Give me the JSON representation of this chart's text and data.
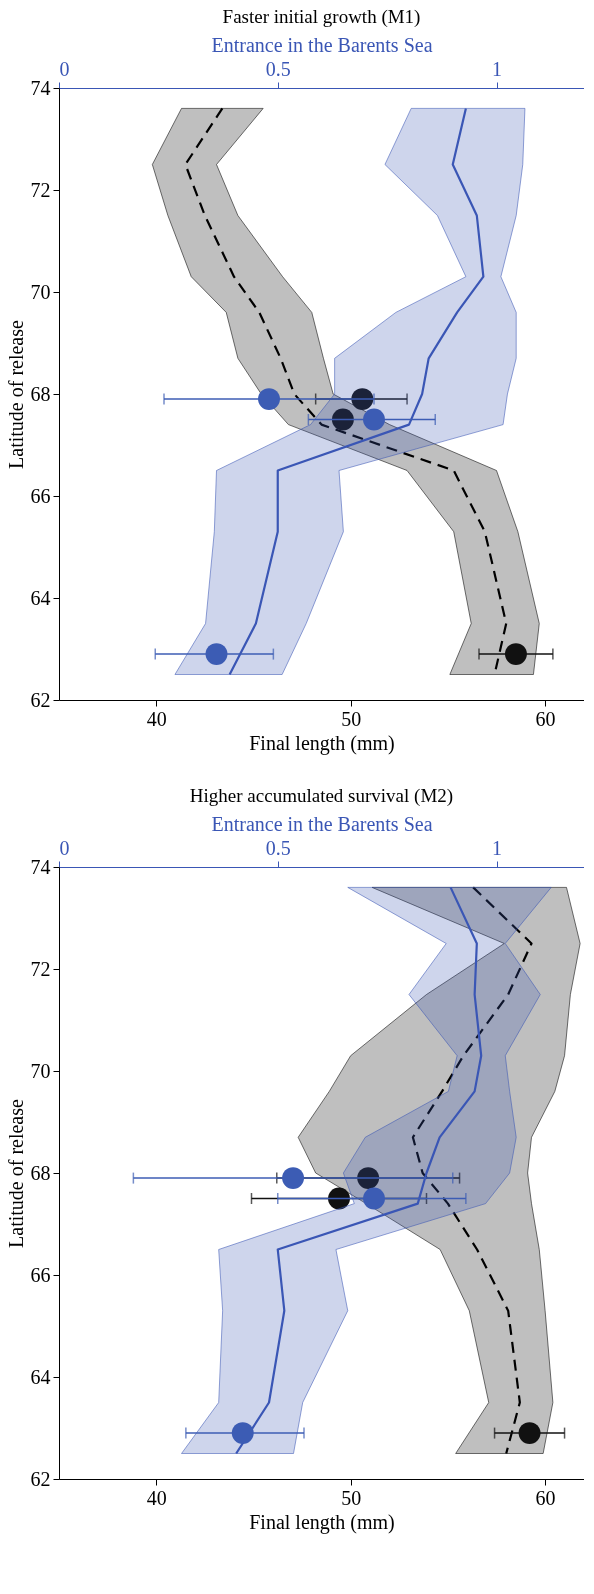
{
  "chart_data": [
    {
      "type": "line",
      "orientation": "horizontal",
      "title": "Faster initial growth (M1)",
      "x2label": "Entrance in the Barents Sea",
      "xlabel": "Final length (mm)",
      "ylabel": "Latitude of release",
      "xlim": [
        35,
        62
      ],
      "xticks": [
        40,
        50,
        60
      ],
      "x2lim": [
        0,
        1.2
      ],
      "x2ticks": [
        0,
        0.5,
        1
      ],
      "ylim": [
        62,
        74
      ],
      "yticks": [
        62,
        64,
        66,
        68,
        70,
        72,
        74
      ],
      "grid": false,
      "series": [
        {
          "type": "line",
          "color": "#000000",
          "line_style": "dashed",
          "x": [
            73.6,
            72.5,
            71.5,
            70.3,
            69.6,
            68.7,
            68.0,
            67.4,
            66.5,
            65.3,
            63.5,
            62.5
          ],
          "values": [
            43.4,
            41.5,
            42.5,
            44.0,
            45.3,
            46.4,
            47.1,
            48.5,
            55.3,
            56.9,
            58.0,
            57.4
          ],
          "lower": [
            41.3,
            39.8,
            40.6,
            41.8,
            43.6,
            44.2,
            45.4,
            46.8,
            52.9,
            55.3,
            56.2,
            55.1
          ],
          "upper": [
            45.5,
            43.1,
            44.2,
            46.5,
            48.0,
            48.6,
            49.1,
            52.0,
            57.5,
            58.6,
            59.7,
            59.4
          ]
        },
        {
          "type": "line",
          "axis": "x2",
          "color": "#3a56b5",
          "line_style": "solid",
          "x": [
            73.6,
            72.5,
            71.5,
            70.3,
            69.6,
            68.7,
            68.0,
            67.4,
            66.5,
            65.3,
            63.5,
            62.5
          ],
          "values": [
            0.93,
            0.9,
            0.955,
            0.97,
            0.91,
            0.845,
            0.83,
            0.8,
            0.5,
            0.5,
            0.45,
            0.39
          ],
          "lower": [
            0.805,
            0.745,
            0.865,
            0.93,
            0.77,
            0.63,
            0.63,
            0.575,
            0.36,
            0.355,
            0.335,
            0.265
          ],
          "upper": [
            1.065,
            1.06,
            1.045,
            1.01,
            1.045,
            1.045,
            1.025,
            1.015,
            0.64,
            0.65,
            0.565,
            0.51
          ]
        },
        {
          "type": "scatter",
          "marker": "circle",
          "color": "#111111",
          "x": [
            67.9,
            67.5,
            62.9
          ],
          "values": [
            50.6,
            49.6,
            58.5
          ],
          "errors": [
            [
              48.2,
              52.9
            ],
            null,
            [
              56.6,
              60.4
            ]
          ]
        },
        {
          "type": "scatter",
          "marker": "circle",
          "axis": "x2",
          "color": "#3c5cb4",
          "x": [
            67.9,
            67.5,
            62.9
          ],
          "values": [
            0.48,
            0.72,
            0.36
          ],
          "errors": [
            [
              0.24,
              0.72
            ],
            [
              0.57,
              0.86
            ],
            [
              0.22,
              0.49
            ]
          ]
        }
      ]
    },
    {
      "type": "line",
      "orientation": "horizontal",
      "title": "Higher accumulated survival (M2)",
      "x2label": "Entrance in the Barents Sea",
      "xlabel": "Final length (mm)",
      "ylabel": "Latitude of release",
      "xlim": [
        35,
        62
      ],
      "xticks": [
        40,
        50,
        60
      ],
      "x2lim": [
        0,
        1.2
      ],
      "x2ticks": [
        0,
        0.5,
        1
      ],
      "ylim": [
        62,
        74
      ],
      "yticks": [
        62,
        64,
        66,
        68,
        70,
        72,
        74
      ],
      "grid": false,
      "series": [
        {
          "type": "line",
          "color": "#000000",
          "line_style": "dashed",
          "x": [
            73.6,
            72.5,
            71.5,
            70.3,
            69.6,
            68.7,
            68.0,
            67.4,
            66.5,
            65.3,
            63.5,
            62.5
          ],
          "values": [
            56.3,
            59.3,
            58.1,
            55.8,
            54.7,
            53.2,
            53.7,
            55.0,
            56.5,
            58.1,
            58.7,
            58.0
          ],
          "lower": [
            51.1,
            57.9,
            53.9,
            50.0,
            48.9,
            47.3,
            48.2,
            50.8,
            54.6,
            56.1,
            57.1,
            55.4
          ],
          "upper": [
            61.1,
            61.8,
            61.3,
            61.0,
            60.5,
            59.3,
            59.1,
            59.3,
            59.7,
            60.0,
            60.4,
            59.9
          ]
        },
        {
          "type": "line",
          "axis": "x2",
          "color": "#3a56b5",
          "line_style": "solid",
          "x": [
            73.6,
            72.5,
            71.5,
            70.3,
            69.6,
            68.7,
            68.0,
            67.4,
            66.5,
            65.3,
            63.5,
            62.5
          ],
          "values": [
            0.895,
            0.955,
            0.95,
            0.965,
            0.95,
            0.87,
            0.84,
            0.82,
            0.5,
            0.515,
            0.48,
            0.405
          ],
          "lower": [
            0.66,
            0.885,
            0.8,
            0.91,
            0.89,
            0.7,
            0.65,
            0.675,
            0.365,
            0.374,
            0.365,
            0.28
          ],
          "upper": [
            1.125,
            1.02,
            1.1,
            1.02,
            1.03,
            1.045,
            1.03,
            0.975,
            0.633,
            0.66,
            0.557,
            0.536
          ]
        },
        {
          "type": "scatter",
          "marker": "circle",
          "color": "#111111",
          "x": [
            67.9,
            67.5,
            62.9
          ],
          "values": [
            50.9,
            49.4,
            59.2
          ],
          "errors": [
            [
              46.2,
              55.6
            ],
            [
              44.9,
              53.9
            ],
            [
              57.4,
              61.0
            ]
          ]
        },
        {
          "type": "scatter",
          "marker": "circle",
          "axis": "x2",
          "color": "#3c5cb4",
          "x": [
            67.9,
            67.5,
            62.9
          ],
          "values": [
            0.535,
            0.72,
            0.42
          ],
          "errors": [
            [
              0.17,
              0.9
            ],
            [
              0.5,
              0.93
            ],
            [
              0.29,
              0.56
            ]
          ]
        }
      ]
    }
  ]
}
